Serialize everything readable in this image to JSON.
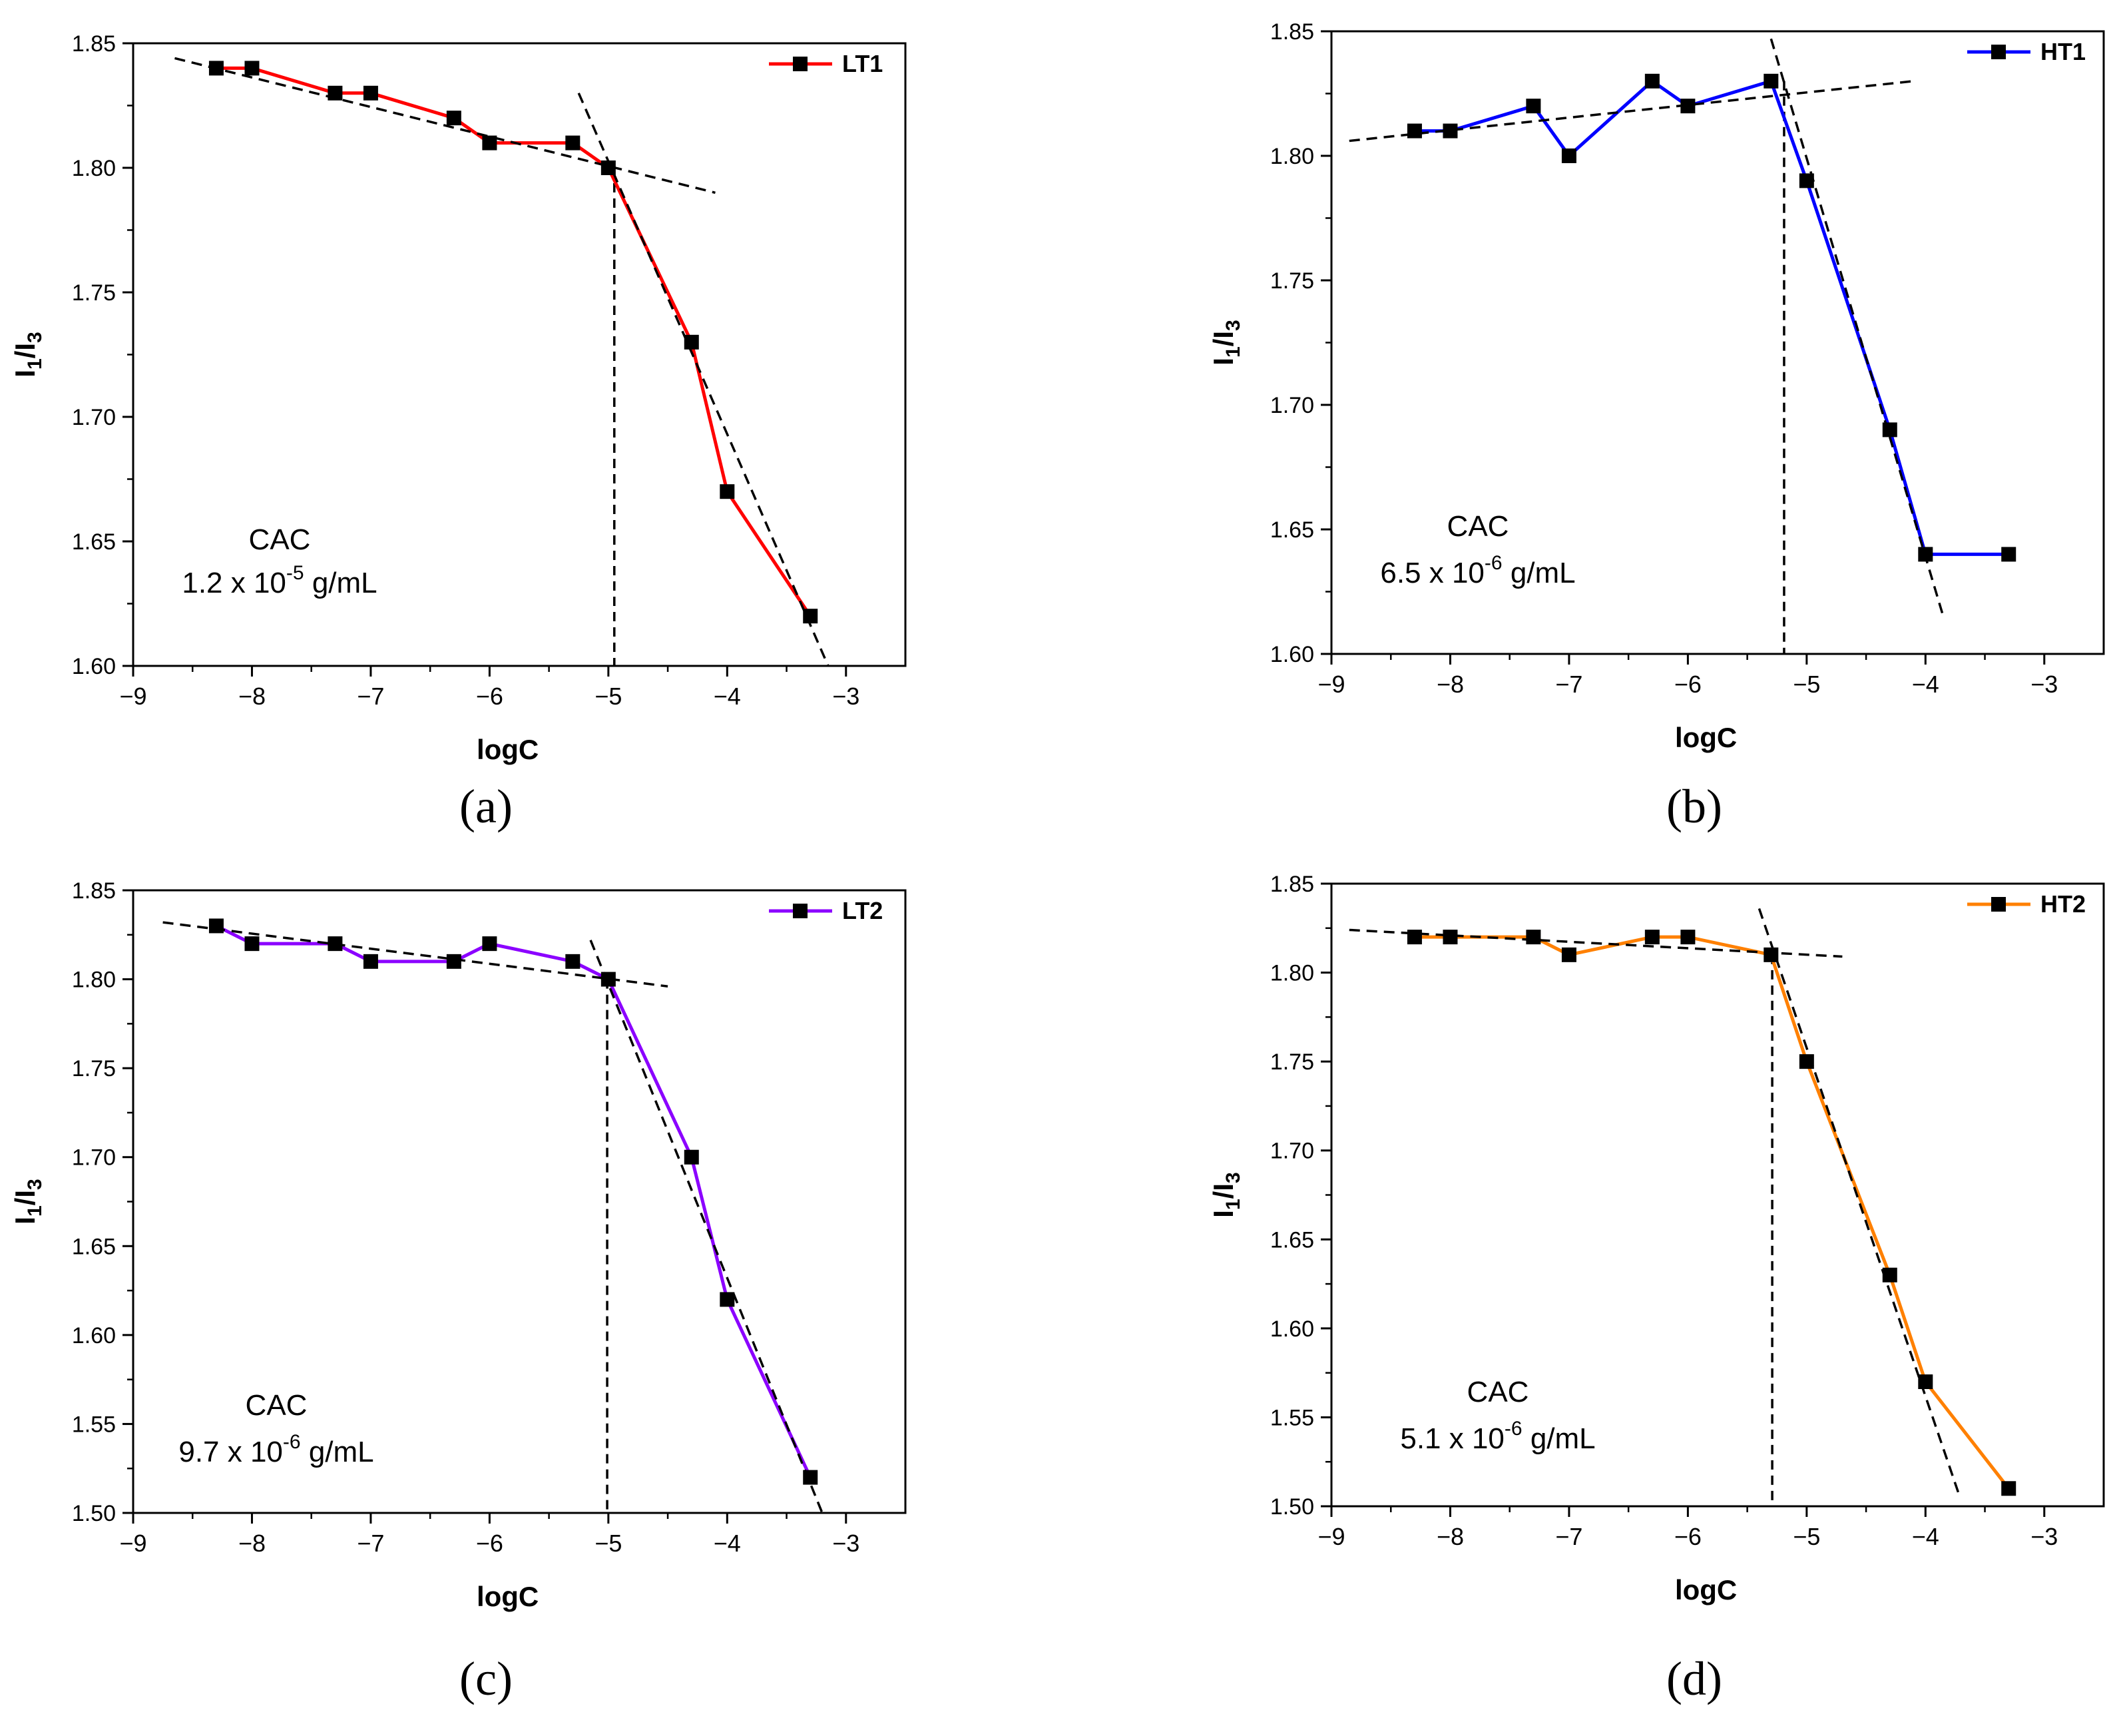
{
  "figure": {
    "panels": [
      {
        "key": "a",
        "label_text": "(a)"
      },
      {
        "key": "b",
        "label_text": "(b)"
      },
      {
        "key": "c",
        "label_text": "(c)"
      },
      {
        "key": "d",
        "label_text": "(d)"
      }
    ]
  },
  "chart_data": [
    {
      "panel": "a",
      "type": "line",
      "title": "",
      "xlabel": "logC",
      "ylabel": "I1/I3",
      "ylabel_parts": {
        "base": "I",
        "sub1": "1",
        "slash": "/",
        "base2": "I",
        "sub2": "3"
      },
      "xlim": [
        -9,
        -2.5
      ],
      "ylim": [
        1.6,
        1.85
      ],
      "xticks": [
        -9,
        -8,
        -7,
        -6,
        -5,
        -4,
        -3
      ],
      "xtick_labels": [
        "−9",
        "−8",
        "−7",
        "−6",
        "−5",
        "−4",
        "−3"
      ],
      "yticks": [
        1.6,
        1.65,
        1.7,
        1.75,
        1.8,
        1.85
      ],
      "ytick_labels": [
        "1.60",
        "1.65",
        "1.70",
        "1.75",
        "1.80",
        "1.85"
      ],
      "legend": {
        "position": "top-right",
        "label": "LT1"
      },
      "series": [
        {
          "name": "LT1",
          "color": "#ff0000",
          "x": [
            -8.3,
            -8.0,
            -7.3,
            -7.0,
            -6.3,
            -6.0,
            -5.3,
            -5.0,
            -4.3,
            -4.0,
            -3.3
          ],
          "y": [
            1.84,
            1.84,
            1.83,
            1.83,
            1.82,
            1.81,
            1.81,
            1.8,
            1.73,
            1.67,
            1.62
          ]
        }
      ],
      "fit_lines": [
        {
          "x": [
            -8.65,
            -4.1
          ],
          "y": [
            1.844,
            1.79
          ]
        },
        {
          "x": [
            -5.25,
            -3.15
          ],
          "y": [
            1.83,
            1.6
          ]
        }
      ],
      "cac_line_x": -4.95,
      "annotation": {
        "title": "CAC",
        "prefix": "1.2 x 10",
        "exponent": "-5",
        "suffix": " g/mL"
      }
    },
    {
      "panel": "b",
      "type": "line",
      "title": "",
      "xlabel": "logC",
      "ylabel": "I1/I3",
      "ylabel_parts": {
        "base": "I",
        "sub1": "1",
        "slash": "/",
        "base2": "I",
        "sub2": "3"
      },
      "xlim": [
        -9,
        -2.5
      ],
      "ylim": [
        1.6,
        1.85
      ],
      "xticks": [
        -9,
        -8,
        -7,
        -6,
        -5,
        -4,
        -3
      ],
      "xtick_labels": [
        "−9",
        "−8",
        "−7",
        "−6",
        "−5",
        "−4",
        "−3"
      ],
      "yticks": [
        1.6,
        1.65,
        1.7,
        1.75,
        1.8,
        1.85
      ],
      "ytick_labels": [
        "1.60",
        "1.65",
        "1.70",
        "1.75",
        "1.80",
        "1.85"
      ],
      "legend": {
        "position": "top-right",
        "label": "HT1"
      },
      "series": [
        {
          "name": "HT1",
          "color": "#0000ff",
          "x": [
            -8.3,
            -8.0,
            -7.3,
            -7.0,
            -6.3,
            -6.0,
            -5.3,
            -5.0,
            -4.3,
            -4.0,
            -3.3
          ],
          "y": [
            1.81,
            1.81,
            1.82,
            1.8,
            1.83,
            1.82,
            1.83,
            1.79,
            1.69,
            1.64,
            1.64
          ]
        }
      ],
      "fit_lines": [
        {
          "x": [
            -8.85,
            -4.1
          ],
          "y": [
            1.806,
            1.83
          ]
        },
        {
          "x": [
            -5.3,
            -3.85
          ],
          "y": [
            1.847,
            1.615
          ]
        }
      ],
      "cac_line_x": -5.19,
      "annotation": {
        "title": "CAC",
        "prefix": "6.5 x 10",
        "exponent": "-6",
        "suffix": " g/mL"
      }
    },
    {
      "panel": "c",
      "type": "line",
      "title": "",
      "xlabel": "logC",
      "ylabel": "I1/I3",
      "ylabel_parts": {
        "base": "I",
        "sub1": "1",
        "slash": "/",
        "base2": "I",
        "sub2": "3"
      },
      "xlim": [
        -9,
        -2.5
      ],
      "ylim": [
        1.5,
        1.85
      ],
      "xticks": [
        -9,
        -8,
        -7,
        -6,
        -5,
        -4,
        -3
      ],
      "xtick_labels": [
        "−9",
        "−8",
        "−7",
        "−6",
        "−5",
        "−4",
        "−3"
      ],
      "yticks": [
        1.5,
        1.55,
        1.6,
        1.65,
        1.7,
        1.75,
        1.8,
        1.85
      ],
      "ytick_labels": [
        "1.50",
        "1.55",
        "1.60",
        "1.65",
        "1.70",
        "1.75",
        "1.80",
        "1.85"
      ],
      "legend": {
        "position": "top-right",
        "label": "LT2"
      },
      "series": [
        {
          "name": "LT2",
          "color": "#8b00ff",
          "x": [
            -8.3,
            -8.0,
            -7.3,
            -7.0,
            -6.3,
            -6.0,
            -5.3,
            -5.0,
            -4.3,
            -4.0,
            -3.3
          ],
          "y": [
            1.83,
            1.82,
            1.82,
            1.81,
            1.81,
            1.82,
            1.81,
            1.8,
            1.7,
            1.62,
            1.52
          ]
        }
      ],
      "fit_lines": [
        {
          "x": [
            -8.75,
            -4.5
          ],
          "y": [
            1.832,
            1.796
          ]
        },
        {
          "x": [
            -5.15,
            -3.2
          ],
          "y": [
            1.822,
            1.5
          ]
        }
      ],
      "cac_line_x": -5.01,
      "annotation": {
        "title": "CAC",
        "prefix": "9.7  x 10",
        "exponent": "-6",
        "suffix": " g/mL"
      }
    },
    {
      "panel": "d",
      "type": "line",
      "title": "",
      "xlabel": "logC",
      "ylabel": "I1/I3",
      "ylabel_parts": {
        "base": "I",
        "sub1": "1",
        "slash": "/",
        "base2": "I",
        "sub2": "3"
      },
      "xlim": [
        -9,
        -2.5
      ],
      "ylim": [
        1.5,
        1.85
      ],
      "xticks": [
        -9,
        -8,
        -7,
        -6,
        -5,
        -4,
        -3
      ],
      "xtick_labels": [
        "−9",
        "−8",
        "−7",
        "−6",
        "−5",
        "−4",
        "−3"
      ],
      "yticks": [
        1.5,
        1.55,
        1.6,
        1.65,
        1.7,
        1.75,
        1.8,
        1.85
      ],
      "ytick_labels": [
        "1.50",
        "1.55",
        "1.60",
        "1.65",
        "1.70",
        "1.75",
        "1.80",
        "1.85"
      ],
      "legend": {
        "position": "top-right",
        "label": "HT2"
      },
      "series": [
        {
          "name": "HT2",
          "color": "#ff8000",
          "x": [
            -8.3,
            -8.0,
            -7.3,
            -7.0,
            -6.3,
            -6.0,
            -5.3,
            -5.0,
            -4.3,
            -4.0,
            -3.3
          ],
          "y": [
            1.82,
            1.82,
            1.82,
            1.81,
            1.82,
            1.82,
            1.81,
            1.75,
            1.63,
            1.57,
            1.51
          ]
        }
      ],
      "fit_lines": [
        {
          "x": [
            -8.85,
            -4.7
          ],
          "y": [
            1.824,
            1.809
          ]
        },
        {
          "x": [
            -5.4,
            -3.72
          ],
          "y": [
            1.836,
            1.507
          ]
        }
      ],
      "cac_line_x": -5.29,
      "annotation": {
        "title": "CAC",
        "prefix": "5.1 x 10",
        "exponent": "-6",
        "suffix": " g/mL"
      }
    }
  ]
}
